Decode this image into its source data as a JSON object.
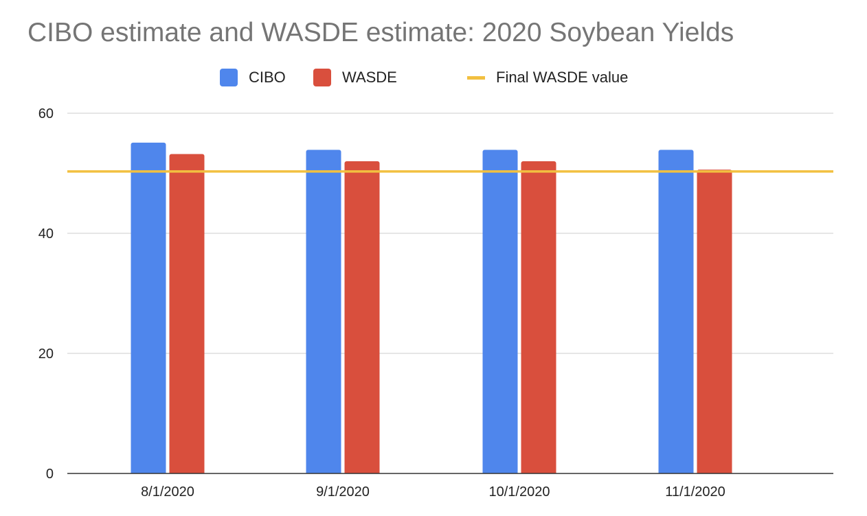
{
  "chart_data": {
    "type": "bar",
    "title": "CIBO estimate and WASDE estimate: 2020 Soybean Yields",
    "xlabel": "",
    "ylabel": "",
    "categories": [
      "8/1/2020",
      "9/1/2020",
      "10/1/2020",
      "11/1/2020"
    ],
    "series": [
      {
        "name": "CIBO",
        "values": [
          55.1,
          53.9,
          53.9,
          53.9
        ],
        "color": "#4f86ec"
      },
      {
        "name": "WASDE",
        "values": [
          53.2,
          52.0,
          52.0,
          50.6
        ],
        "color": "#d94f3d"
      }
    ],
    "reference_line": {
      "name": "Final WASDE value",
      "value": 50.3,
      "color": "#f2c040"
    },
    "ylim": [
      0,
      60
    ],
    "yticks": [
      0,
      20,
      40,
      60
    ],
    "grid": true,
    "legend_position": "top-center"
  }
}
